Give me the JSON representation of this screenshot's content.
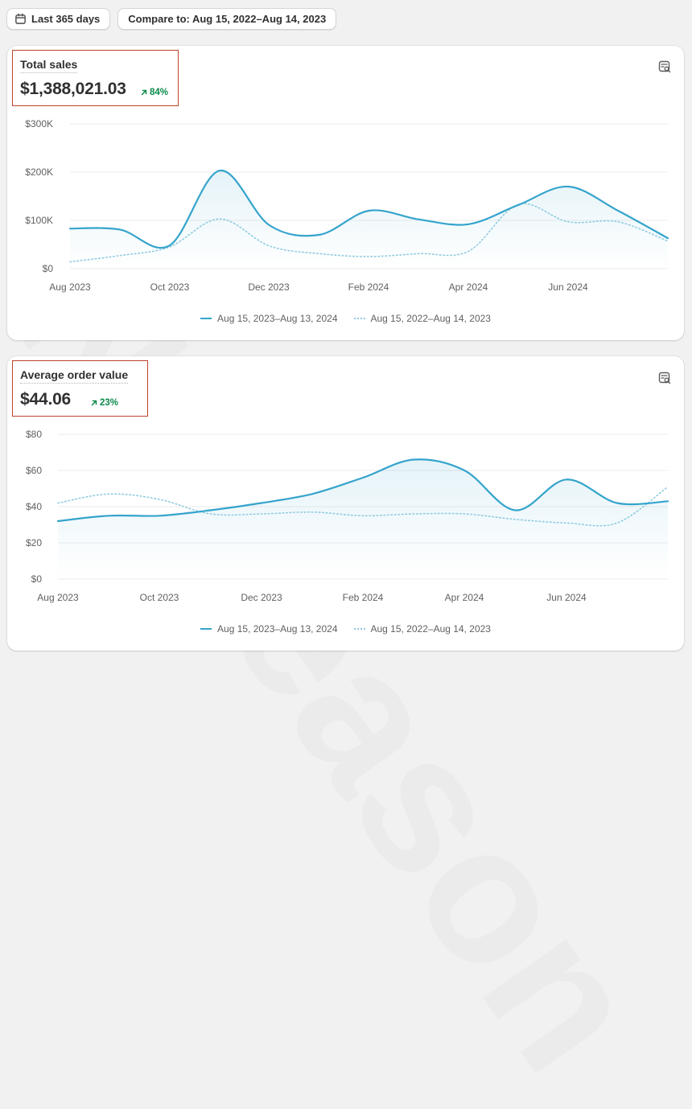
{
  "toolbar": {
    "date_range_label": "Last 365 days",
    "compare_label": "Compare to: Aug 15, 2022–Aug 14, 2023"
  },
  "watermark": "Nudeason",
  "colors": {
    "current_series": "#35a4cc",
    "previous_series": "#8fcbe0",
    "highlight_box": "#c0412a",
    "positive_delta": "#0b8a4a"
  },
  "cards": [
    {
      "title": "Total sales",
      "value": "$1,388,021.03",
      "delta": "84%",
      "explore_icon": "explore-chart-icon"
    },
    {
      "title": "Average order value",
      "value": "$44.06",
      "delta": "23%",
      "explore_icon": "explore-chart-icon"
    }
  ],
  "legend": {
    "current": "Aug 15, 2023–Aug 13, 2024",
    "previous": "Aug 15, 2022–Aug 14, 2023"
  },
  "chart_data": [
    {
      "type": "area",
      "title": "Total sales",
      "x_tick_labels": [
        "Aug 2023",
        "Oct 2023",
        "Dec 2023",
        "Feb 2024",
        "Apr 2024",
        "Jun 2024"
      ],
      "y_tick_labels": [
        "$0",
        "$100K",
        "$200K",
        "$300K"
      ],
      "ylim": [
        0,
        300000
      ],
      "grid": true,
      "legend_placement": "bottom-center",
      "x": [
        0,
        1,
        2,
        3,
        4,
        5,
        6,
        7,
        8,
        9,
        10,
        11,
        12
      ],
      "series": [
        {
          "name": "Aug 15, 2023–Aug 13, 2024",
          "style": "solid",
          "values": [
            83000,
            81000,
            48000,
            203000,
            90000,
            70000,
            120000,
            102000,
            92000,
            132000,
            170000,
            120000,
            63000
          ]
        },
        {
          "name": "Aug 15, 2022–Aug 14, 2023",
          "style": "dotted",
          "values": [
            14000,
            27000,
            45000,
            103000,
            47000,
            31000,
            25000,
            31000,
            36000,
            133000,
            97000,
            97000,
            57000
          ]
        }
      ]
    },
    {
      "type": "area",
      "title": "Average order value",
      "x_tick_labels": [
        "Aug 2023",
        "Oct 2023",
        "Dec 2023",
        "Feb 2024",
        "Apr 2024",
        "Jun 2024"
      ],
      "y_tick_labels": [
        "$0",
        "$20",
        "$40",
        "$60",
        "$80"
      ],
      "ylim": [
        0,
        80
      ],
      "grid": true,
      "legend_placement": "bottom-center",
      "x": [
        0,
        1,
        2,
        3,
        4,
        5,
        6,
        7,
        8,
        9,
        10,
        11,
        12
      ],
      "series": [
        {
          "name": "Aug 15, 2023–Aug 13, 2024",
          "style": "solid",
          "values": [
            32,
            35,
            35,
            38,
            42,
            47,
            56,
            66,
            60,
            38,
            55,
            42,
            43
          ]
        },
        {
          "name": "Aug 15, 2022–Aug 14, 2023",
          "style": "dotted",
          "values": [
            42,
            47,
            44,
            36,
            36,
            37,
            35,
            36,
            36,
            33,
            31,
            31,
            51
          ]
        }
      ]
    }
  ]
}
